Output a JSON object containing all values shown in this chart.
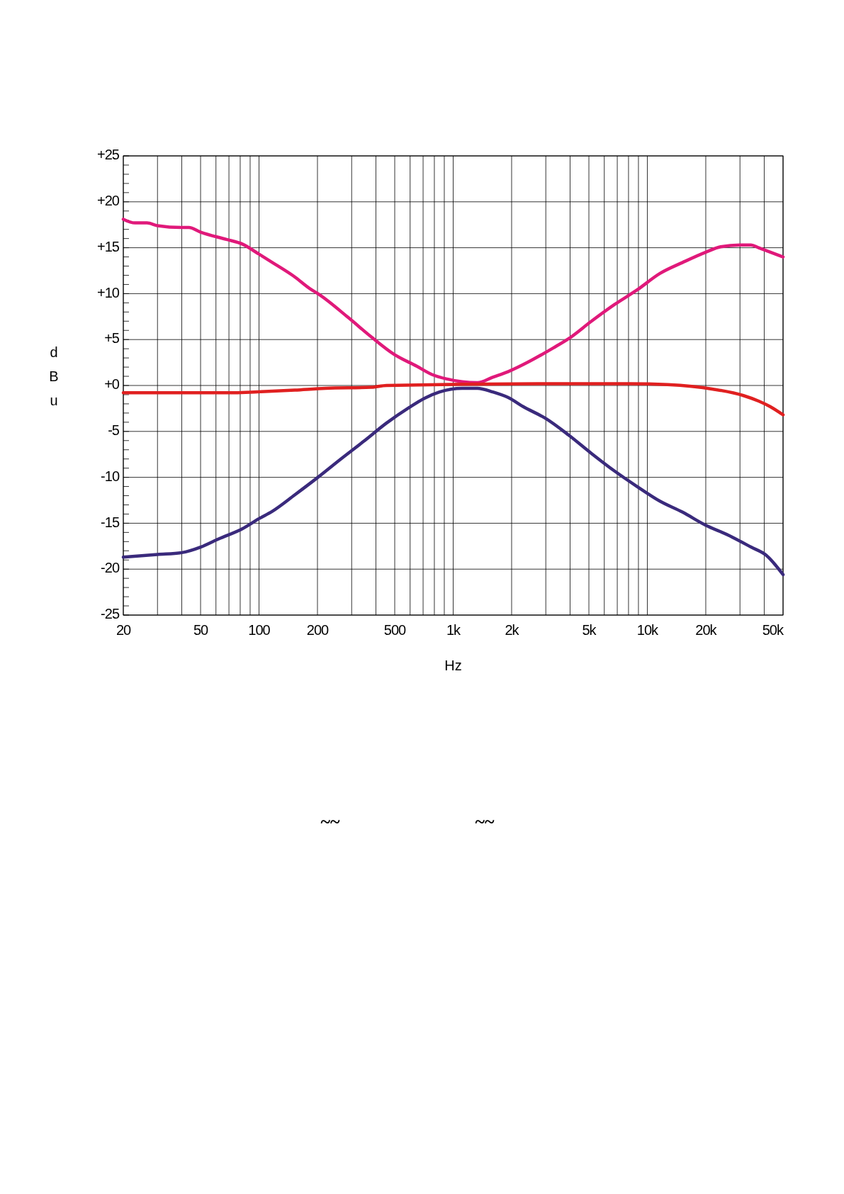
{
  "chart_data": {
    "type": "line",
    "xlabel": "Hz",
    "ylabel": "dBu",
    "log": "x",
    "grid": true,
    "line_style": "solid",
    "xlim": [
      20,
      50000
    ],
    "ylim": [
      -25,
      25
    ],
    "xticks": [
      20,
      {
        "value": 30,
        "label": null
      },
      {
        "value": 40,
        "label": null
      },
      50,
      {
        "value": 60,
        "label": null
      },
      {
        "value": 70,
        "label": null
      },
      {
        "value": 80,
        "label": null
      },
      {
        "value": 90,
        "label": null
      },
      100,
      200,
      {
        "value": 300,
        "label": null
      },
      {
        "value": 400,
        "label": null
      },
      500,
      {
        "value": 600,
        "label": null
      },
      {
        "value": 700,
        "label": null
      },
      {
        "value": 800,
        "label": null
      },
      {
        "value": 900,
        "label": null
      },
      {
        "value": 1000,
        "label": "1k"
      },
      {
        "value": 2000,
        "label": "2k"
      },
      {
        "value": 3000,
        "label": null
      },
      {
        "value": 4000,
        "label": null
      },
      {
        "value": 5000,
        "label": "5k"
      },
      {
        "value": 6000,
        "label": null
      },
      {
        "value": 7000,
        "label": null
      },
      {
        "value": 8000,
        "label": null
      },
      {
        "value": 9000,
        "label": null
      },
      {
        "value": 10000,
        "label": "10k"
      },
      {
        "value": 20000,
        "label": "20k"
      },
      {
        "value": 30000,
        "label": null
      },
      {
        "value": 40000,
        "label": null
      },
      {
        "value": 50000,
        "label": "50k"
      }
    ],
    "yticks": [
      {
        "value": 25,
        "label": "+25"
      },
      {
        "value": 20,
        "label": "+20"
      },
      {
        "value": 15,
        "label": "+15"
      },
      {
        "value": 10,
        "label": "+10"
      },
      {
        "value": 5,
        "label": "+5"
      },
      {
        "value": 0,
        "label": "+0"
      },
      -5,
      -10,
      -15,
      -20,
      -25
    ],
    "annotations": [
      "~~",
      "~~"
    ],
    "series": [
      {
        "color": "#e0197a",
        "x": [
          20,
          23,
          26.5,
          30,
          40,
          43.5,
          50,
          68,
          82,
          100,
          117,
          151,
          184,
          201,
          288,
          378,
          495,
          649,
          777,
          931,
          1114,
          1334,
          1598,
          1914,
          2507,
          3285,
          3934,
          5155,
          6761,
          8851,
          11610,
          15200,
          19910,
          23870,
          29910,
          34220,
          37430,
          50000
        ],
        "values": [
          18.1,
          17.7,
          17.7,
          17.4,
          17.2,
          17.2,
          16.7,
          15.9,
          15.4,
          14.3,
          13.4,
          11.9,
          10.5,
          10,
          7.4,
          5.3,
          3.4,
          2.1,
          1.2,
          0.7,
          0.4,
          0.3,
          0.9,
          1.5,
          2.7,
          4.1,
          5.1,
          7,
          8.8,
          10.4,
          12.2,
          13.4,
          14.5,
          15.1,
          15.3,
          15.3,
          15,
          14
        ]
      },
      {
        "color": "#3a2a7c",
        "x": [
          20,
          30,
          40,
          50,
          62,
          82,
          100,
          117,
          153,
          201,
          264,
          345,
          453,
          593,
          710,
          851,
          1114,
          1334,
          1598,
          1914,
          2291,
          3000,
          3934,
          5155,
          6761,
          8851,
          11610,
          15200,
          19910,
          26120,
          34220,
          41000,
          50000
        ],
        "values": [
          -18.7,
          -18.4,
          -18.2,
          -17.6,
          -16.7,
          -15.6,
          -14.5,
          -13.7,
          -11.9,
          -10,
          -8,
          -6.1,
          -4.1,
          -2.4,
          -1.4,
          -0.7,
          -0.3,
          -0.3,
          -0.7,
          -1.3,
          -2.3,
          -3.6,
          -5.4,
          -7.4,
          -9.3,
          -11,
          -12.6,
          -13.8,
          -15.2,
          -16.3,
          -17.6,
          -18.5,
          -20.6
        ]
      },
      {
        "color": "#e02020",
        "x": [
          20,
          75,
          98,
          153,
          220,
          378,
          453,
          2743,
          8091,
          12700,
          21820,
          31270,
          37430,
          42870,
          50000
        ],
        "values": [
          -0.8,
          -0.8,
          -0.7,
          -0.5,
          -0.3,
          -0.2,
          0,
          0.2,
          0.2,
          0.1,
          -0.4,
          -1.1,
          -1.7,
          -2.3,
          -3.2
        ]
      }
    ]
  }
}
